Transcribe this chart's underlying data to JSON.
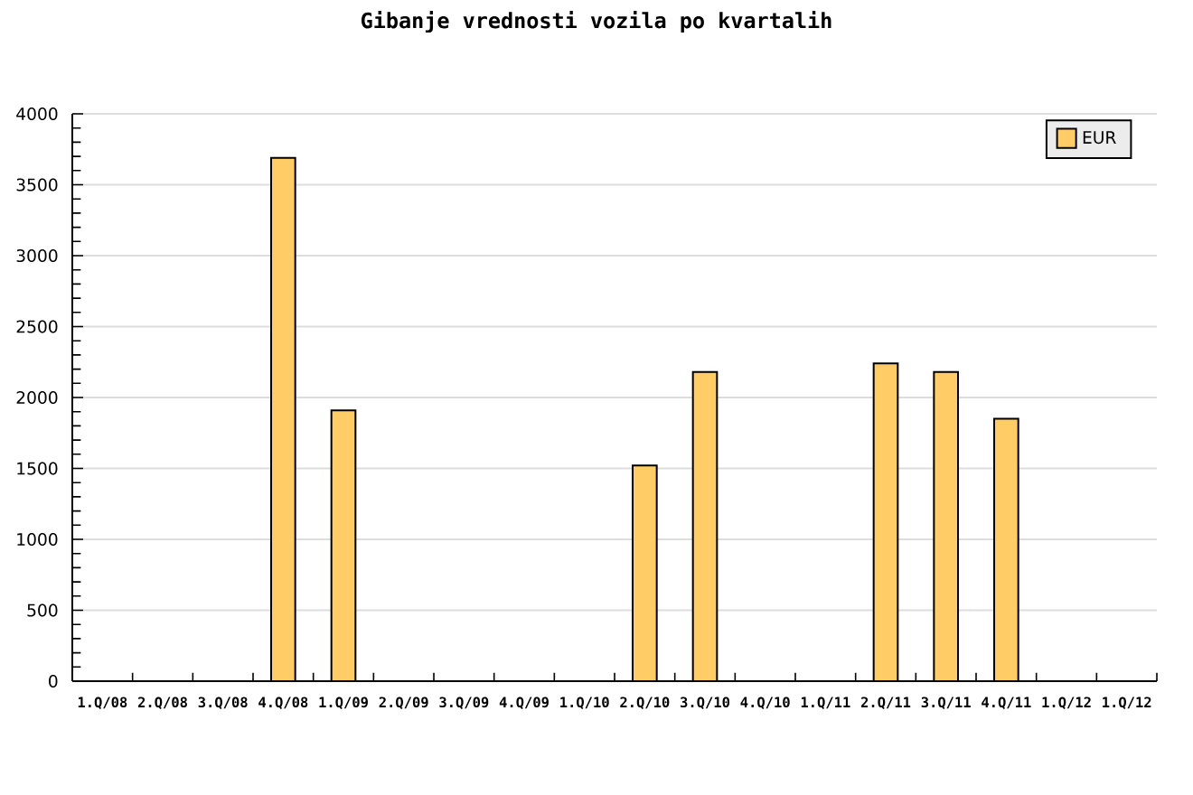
{
  "chart_data": {
    "type": "bar",
    "title": "Gibanje vrednosti vozila po kvartalih",
    "categories": [
      "1.Q/08",
      "2.Q/08",
      "3.Q/08",
      "4.Q/08",
      "1.Q/09",
      "2.Q/09",
      "3.Q/09",
      "4.Q/09",
      "1.Q/10",
      "2.Q/10",
      "3.Q/10",
      "4.Q/10",
      "1.Q/11",
      "2.Q/11",
      "3.Q/11",
      "4.Q/11",
      "1.Q/12",
      "1.Q/12"
    ],
    "series": [
      {
        "name": "EUR",
        "color": "#ffcc66",
        "values": [
          null,
          null,
          null,
          3690,
          1910,
          null,
          null,
          null,
          null,
          1520,
          2180,
          null,
          null,
          2240,
          2180,
          1850,
          null,
          null
        ]
      }
    ],
    "ylim": [
      0,
      4000
    ],
    "yticks": [
      0,
      500,
      1000,
      1500,
      2000,
      2500,
      3000,
      3500,
      4000
    ],
    "grid": "y",
    "legend": "top right"
  }
}
